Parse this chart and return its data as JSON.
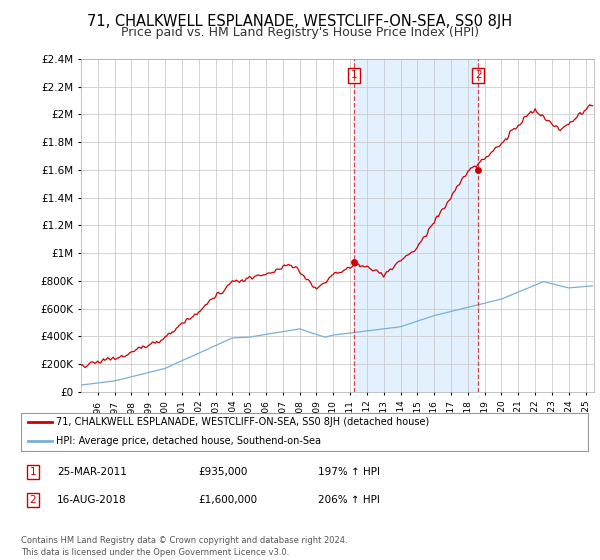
{
  "title": "71, CHALKWELL ESPLANADE, WESTCLIFF-ON-SEA, SS0 8JH",
  "subtitle": "Price paid vs. HM Land Registry's House Price Index (HPI)",
  "title_fontsize": 10.5,
  "subtitle_fontsize": 9,
  "background_color": "#ffffff",
  "plot_bg_color": "#ffffff",
  "grid_color": "#cccccc",
  "red_line_color": "#cc0000",
  "blue_line_color": "#7bafd4",
  "shade_color": "#ddeeff",
  "sale1": {
    "date_num": 2011.23,
    "price": 935000
  },
  "sale2": {
    "date_num": 2018.62,
    "price": 1600000
  },
  "legend_line1": "71, CHALKWELL ESPLANADE, WESTCLIFF-ON-SEA, SS0 8JH (detached house)",
  "legend_line2": "HPI: Average price, detached house, Southend-on-Sea",
  "table_row1": [
    "1",
    "25-MAR-2011",
    "£935,000",
    "197% ↑ HPI"
  ],
  "table_row2": [
    "2",
    "16-AUG-2018",
    "£1,600,000",
    "206% ↑ HPI"
  ],
  "footer": "Contains HM Land Registry data © Crown copyright and database right 2024.\nThis data is licensed under the Open Government Licence v3.0.",
  "ylim": [
    0,
    2400000
  ],
  "yticks": [
    0,
    200000,
    400000,
    600000,
    800000,
    1000000,
    1200000,
    1400000,
    1600000,
    1800000,
    2000000,
    2200000,
    2400000
  ],
  "xlim_start": 1995.0,
  "xlim_end": 2025.5
}
